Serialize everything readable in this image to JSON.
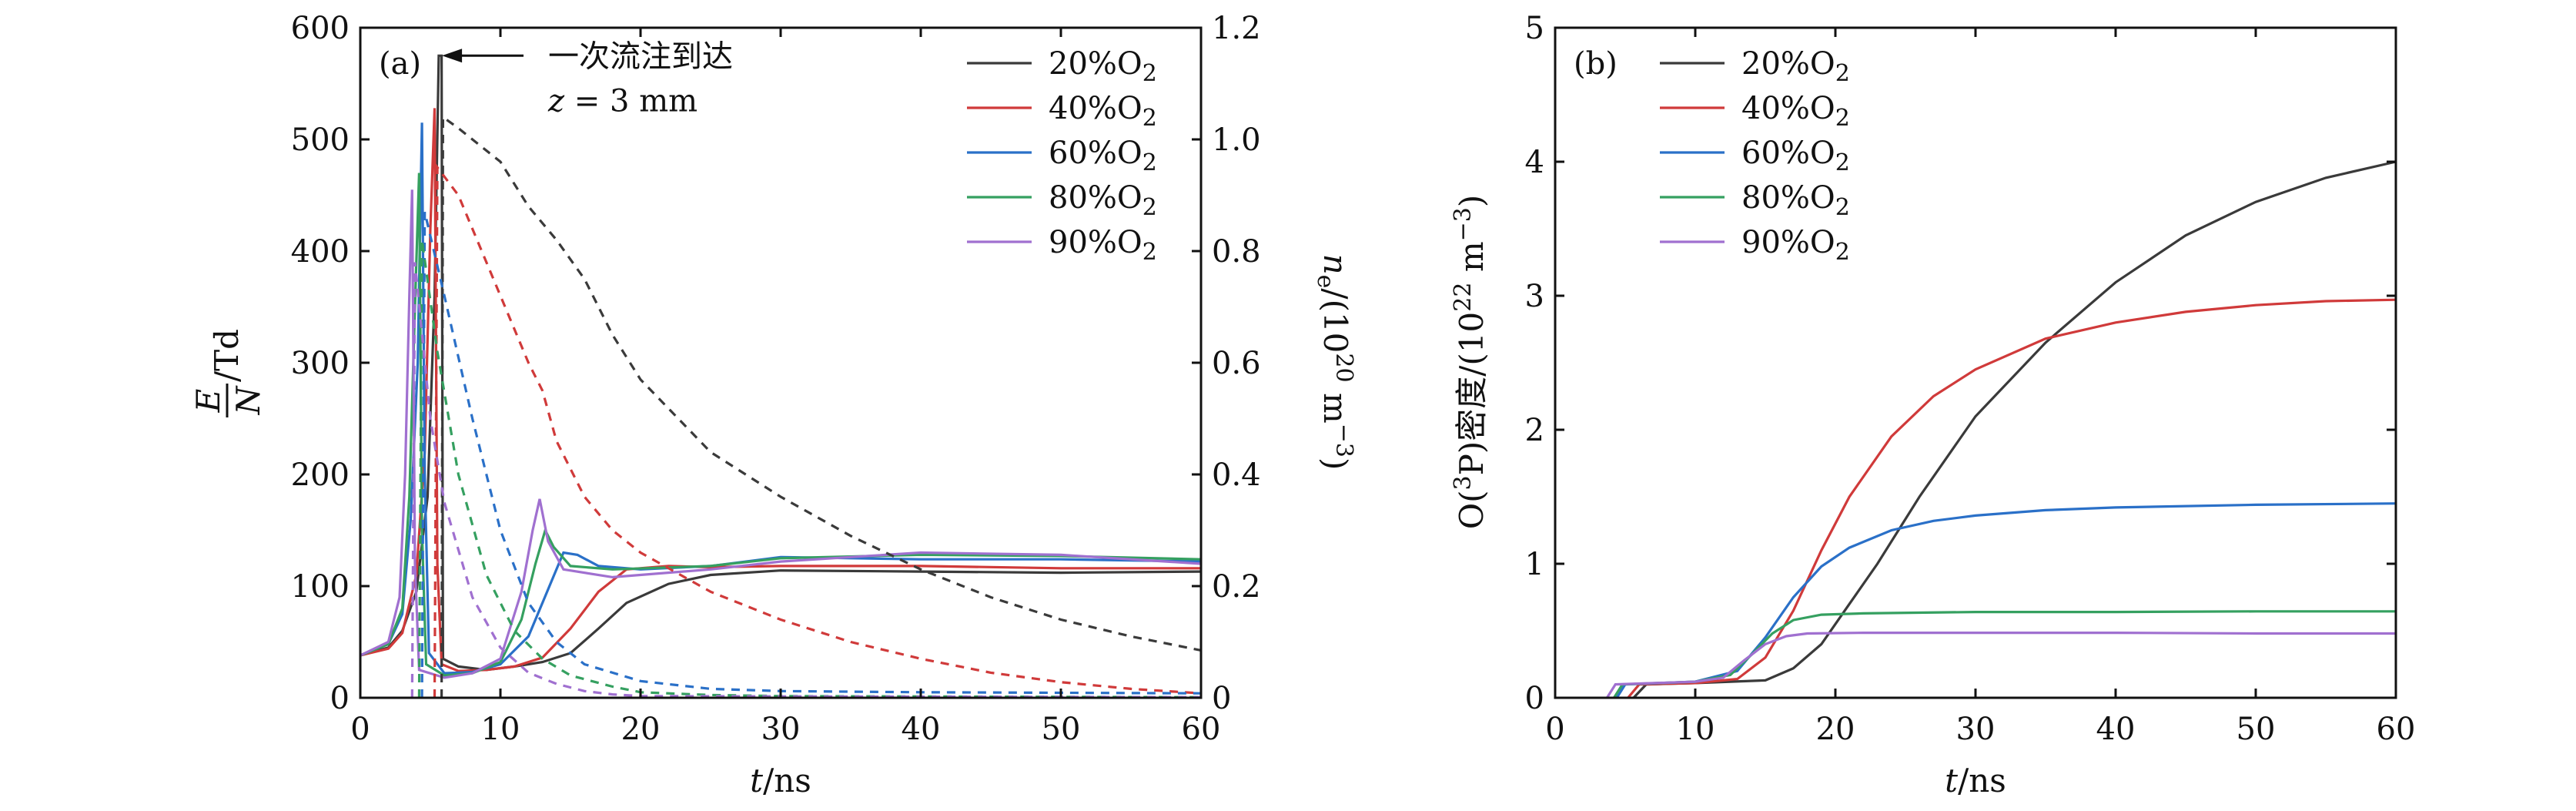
{
  "chart_data": [
    {
      "type": "line",
      "panel_label": "(a)",
      "xlabel": "t/ns",
      "ylabel_left": "E/N /Td",
      "ylabel_right": "ne/(10^20 m^-3)",
      "xlim": [
        0,
        60
      ],
      "ylim_left": [
        0,
        600
      ],
      "ylim_right": [
        0,
        1.2
      ],
      "xticks": [
        0,
        10,
        20,
        30,
        40,
        50,
        60
      ],
      "yticks_left": [
        0,
        100,
        200,
        300,
        400,
        500,
        600
      ],
      "yticks_right": [
        0,
        0.2,
        0.4,
        0.6,
        0.8,
        1.0,
        1.2
      ],
      "tick_labels_right": [
        "0",
        "0.2",
        "0.4",
        "0.6",
        "0.8",
        "1.0",
        "1.2"
      ],
      "legend_position": "top-right",
      "annotation": {
        "text": "一次流注到达",
        "line2": "z = 3 mm",
        "arrow_to_x": 5.5,
        "arrow_to_y": 575
      },
      "series": [
        {
          "name": "20%O2",
          "color": "#3a3a3a",
          "EN": [
            [
              0,
              38
            ],
            [
              2,
              45
            ],
            [
              3,
              60
            ],
            [
              4,
              95
            ],
            [
              4.8,
              180
            ],
            [
              5.3,
              360
            ],
            [
              5.6,
              575
            ],
            [
              5.8,
              575
            ],
            [
              5.9,
              35
            ],
            [
              7,
              28
            ],
            [
              9,
              25
            ],
            [
              11,
              28
            ],
            [
              13,
              32
            ],
            [
              15,
              40
            ],
            [
              17,
              62
            ],
            [
              19,
              85
            ],
            [
              22,
              102
            ],
            [
              25,
              110
            ],
            [
              30,
              114
            ],
            [
              40,
              113
            ],
            [
              50,
              112
            ],
            [
              60,
              113
            ]
          ],
          "ne": [
            [
              5.8,
              0
            ],
            [
              5.9,
              1.04
            ],
            [
              7,
              1.02
            ],
            [
              10,
              0.96
            ],
            [
              12,
              0.88
            ],
            [
              14,
              0.82
            ],
            [
              16,
              0.75
            ],
            [
              18,
              0.65
            ],
            [
              20,
              0.57
            ],
            [
              25,
              0.44
            ],
            [
              30,
              0.36
            ],
            [
              35,
              0.29
            ],
            [
              40,
              0.23
            ],
            [
              45,
              0.18
            ],
            [
              50,
              0.14
            ],
            [
              55,
              0.11
            ],
            [
              60,
              0.085
            ]
          ]
        },
        {
          "name": "40%O2",
          "color": "#d03a3a",
          "EN": [
            [
              0,
              38
            ],
            [
              2,
              44
            ],
            [
              3,
              58
            ],
            [
              4,
              110
            ],
            [
              4.6,
              220
            ],
            [
              5.0,
              420
            ],
            [
              5.3,
              528
            ],
            [
              5.5,
              120
            ],
            [
              5.8,
              30
            ],
            [
              7,
              24
            ],
            [
              9,
              25
            ],
            [
              11,
              28
            ],
            [
              13,
              36
            ],
            [
              15,
              62
            ],
            [
              17,
              95
            ],
            [
              19,
              115
            ],
            [
              22,
              118
            ],
            [
              25,
              117
            ],
            [
              30,
              118
            ],
            [
              40,
              118
            ],
            [
              50,
              116
            ],
            [
              60,
              116
            ]
          ],
          "ne": [
            [
              5.3,
              0
            ],
            [
              5.5,
              0.95
            ],
            [
              7,
              0.9
            ],
            [
              9,
              0.78
            ],
            [
              11,
              0.66
            ],
            [
              12,
              0.6
            ],
            [
              13,
              0.55
            ],
            [
              14,
              0.46
            ],
            [
              16,
              0.36
            ],
            [
              18,
              0.3
            ],
            [
              20,
              0.26
            ],
            [
              25,
              0.19
            ],
            [
              30,
              0.14
            ],
            [
              35,
              0.1
            ],
            [
              40,
              0.07
            ],
            [
              45,
              0.045
            ],
            [
              50,
              0.028
            ],
            [
              55,
              0.016
            ],
            [
              60,
              0.008
            ]
          ]
        },
        {
          "name": "60%O2",
          "color": "#2a70c8",
          "EN": [
            [
              0,
              38
            ],
            [
              2,
              48
            ],
            [
              3,
              75
            ],
            [
              3.6,
              160
            ],
            [
              4.1,
              300
            ],
            [
              4.4,
              515
            ],
            [
              4.6,
              200
            ],
            [
              4.9,
              40
            ],
            [
              6,
              22
            ],
            [
              8,
              23
            ],
            [
              10,
              30
            ],
            [
              12,
              55
            ],
            [
              13.5,
              100
            ],
            [
              14.5,
              130
            ],
            [
              15.5,
              128
            ],
            [
              17,
              118
            ],
            [
              20,
              115
            ],
            [
              25,
              118
            ],
            [
              30,
              126
            ],
            [
              40,
              124
            ],
            [
              50,
              124
            ],
            [
              60,
              122
            ]
          ],
          "ne": [
            [
              4.4,
              0
            ],
            [
              4.6,
              0.87
            ],
            [
              6,
              0.72
            ],
            [
              8,
              0.5
            ],
            [
              10,
              0.3
            ],
            [
              12,
              0.17
            ],
            [
              14,
              0.1
            ],
            [
              16,
              0.06
            ],
            [
              20,
              0.03
            ],
            [
              25,
              0.016
            ],
            [
              30,
              0.012
            ],
            [
              40,
              0.01
            ],
            [
              60,
              0.008
            ]
          ]
        },
        {
          "name": "80%O2",
          "color": "#35a060",
          "EN": [
            [
              0,
              38
            ],
            [
              2,
              48
            ],
            [
              3,
              80
            ],
            [
              3.5,
              180
            ],
            [
              3.9,
              350
            ],
            [
              4.2,
              470
            ],
            [
              4.4,
              150
            ],
            [
              4.7,
              30
            ],
            [
              6,
              20
            ],
            [
              8,
              22
            ],
            [
              10,
              32
            ],
            [
              11.5,
              70
            ],
            [
              12.5,
              120
            ],
            [
              13.2,
              150
            ],
            [
              13.8,
              135
            ],
            [
              15,
              118
            ],
            [
              18,
              115
            ],
            [
              25,
              118
            ],
            [
              30,
              125
            ],
            [
              40,
              128
            ],
            [
              50,
              127
            ],
            [
              60,
              124
            ]
          ],
          "ne": [
            [
              4.2,
              0
            ],
            [
              4.4,
              0.82
            ],
            [
              5.5,
              0.62
            ],
            [
              7,
              0.4
            ],
            [
              9,
              0.22
            ],
            [
              11,
              0.12
            ],
            [
              13,
              0.07
            ],
            [
              15,
              0.04
            ],
            [
              18,
              0.02
            ],
            [
              20,
              0.01
            ],
            [
              25,
              0.005
            ],
            [
              30,
              0.003
            ],
            [
              60,
              0.001
            ]
          ]
        },
        {
          "name": "90%O2",
          "color": "#a070d0",
          "EN": [
            [
              0,
              38
            ],
            [
              2,
              50
            ],
            [
              2.8,
              90
            ],
            [
              3.2,
              200
            ],
            [
              3.5,
              360
            ],
            [
              3.7,
              455
            ],
            [
              3.9,
              120
            ],
            [
              4.2,
              25
            ],
            [
              6,
              18
            ],
            [
              8,
              22
            ],
            [
              10,
              35
            ],
            [
              11.5,
              95
            ],
            [
              12.3,
              150
            ],
            [
              12.8,
              178
            ],
            [
              13.4,
              140
            ],
            [
              14.5,
              115
            ],
            [
              18,
              108
            ],
            [
              25,
              115
            ],
            [
              30,
              122
            ],
            [
              40,
              130
            ],
            [
              50,
              128
            ],
            [
              60,
              120
            ]
          ],
          "ne": [
            [
              3.7,
              0
            ],
            [
              3.9,
              0.78
            ],
            [
              5,
              0.5
            ],
            [
              6,
              0.35
            ],
            [
              8,
              0.18
            ],
            [
              10,
              0.09
            ],
            [
              12,
              0.045
            ],
            [
              14,
              0.025
            ],
            [
              16,
              0.012
            ],
            [
              18,
              0.006
            ],
            [
              20,
              0.003
            ],
            [
              60,
              0.001
            ]
          ]
        }
      ]
    },
    {
      "type": "line",
      "panel_label": "(b)",
      "xlabel": "t/ns",
      "ylabel": "O(3P)密度/(10^22 m^-3)",
      "xlim": [
        0,
        60
      ],
      "ylim": [
        0,
        5
      ],
      "xticks": [
        0,
        10,
        20,
        30,
        40,
        50,
        60
      ],
      "yticks": [
        0,
        1,
        2,
        3,
        4,
        5
      ],
      "legend_position": "top-left",
      "series": [
        {
          "name": "20%O2",
          "color": "#3a3a3a",
          "points": [
            [
              5.6,
              0
            ],
            [
              6.5,
              0.1
            ],
            [
              10,
              0.11
            ],
            [
              15,
              0.13
            ],
            [
              17,
              0.22
            ],
            [
              19,
              0.4
            ],
            [
              21,
              0.7
            ],
            [
              23,
              1.0
            ],
            [
              26,
              1.5
            ],
            [
              30,
              2.1
            ],
            [
              35,
              2.65
            ],
            [
              40,
              3.1
            ],
            [
              45,
              3.45
            ],
            [
              50,
              3.7
            ],
            [
              55,
              3.88
            ],
            [
              60,
              4.0
            ]
          ]
        },
        {
          "name": "40%O2",
          "color": "#d03a3a",
          "points": [
            [
              5.2,
              0
            ],
            [
              6,
              0.1
            ],
            [
              10,
              0.11
            ],
            [
              13,
              0.14
            ],
            [
              15,
              0.3
            ],
            [
              17,
              0.65
            ],
            [
              19,
              1.1
            ],
            [
              21,
              1.5
            ],
            [
              24,
              1.95
            ],
            [
              27,
              2.25
            ],
            [
              30,
              2.45
            ],
            [
              35,
              2.68
            ],
            [
              40,
              2.8
            ],
            [
              45,
              2.88
            ],
            [
              50,
              2.93
            ],
            [
              55,
              2.96
            ],
            [
              60,
              2.97
            ]
          ]
        },
        {
          "name": "60%O2",
          "color": "#2a70c8",
          "points": [
            [
              4.4,
              0
            ],
            [
              5,
              0.1
            ],
            [
              10,
              0.12
            ],
            [
              13,
              0.2
            ],
            [
              15,
              0.45
            ],
            [
              17,
              0.75
            ],
            [
              19,
              0.98
            ],
            [
              21,
              1.12
            ],
            [
              24,
              1.25
            ],
            [
              27,
              1.32
            ],
            [
              30,
              1.36
            ],
            [
              35,
              1.4
            ],
            [
              40,
              1.42
            ],
            [
              50,
              1.44
            ],
            [
              60,
              1.45
            ]
          ]
        },
        {
          "name": "80%O2",
          "color": "#35a060",
          "points": [
            [
              4.2,
              0
            ],
            [
              4.8,
              0.1
            ],
            [
              10,
              0.12
            ],
            [
              12.5,
              0.17
            ],
            [
              14,
              0.32
            ],
            [
              15.5,
              0.48
            ],
            [
              17,
              0.58
            ],
            [
              19,
              0.62
            ],
            [
              22,
              0.63
            ],
            [
              30,
              0.64
            ],
            [
              40,
              0.64
            ],
            [
              50,
              0.645
            ],
            [
              60,
              0.645
            ]
          ]
        },
        {
          "name": "90%O2",
          "color": "#a070d0",
          "points": [
            [
              3.7,
              0
            ],
            [
              4.3,
              0.1
            ],
            [
              10,
              0.12
            ],
            [
              12,
              0.15
            ],
            [
              13.5,
              0.28
            ],
            [
              15,
              0.4
            ],
            [
              16.5,
              0.46
            ],
            [
              18,
              0.48
            ],
            [
              22,
              0.485
            ],
            [
              30,
              0.485
            ],
            [
              40,
              0.485
            ],
            [
              50,
              0.48
            ],
            [
              60,
              0.48
            ]
          ]
        }
      ]
    }
  ]
}
